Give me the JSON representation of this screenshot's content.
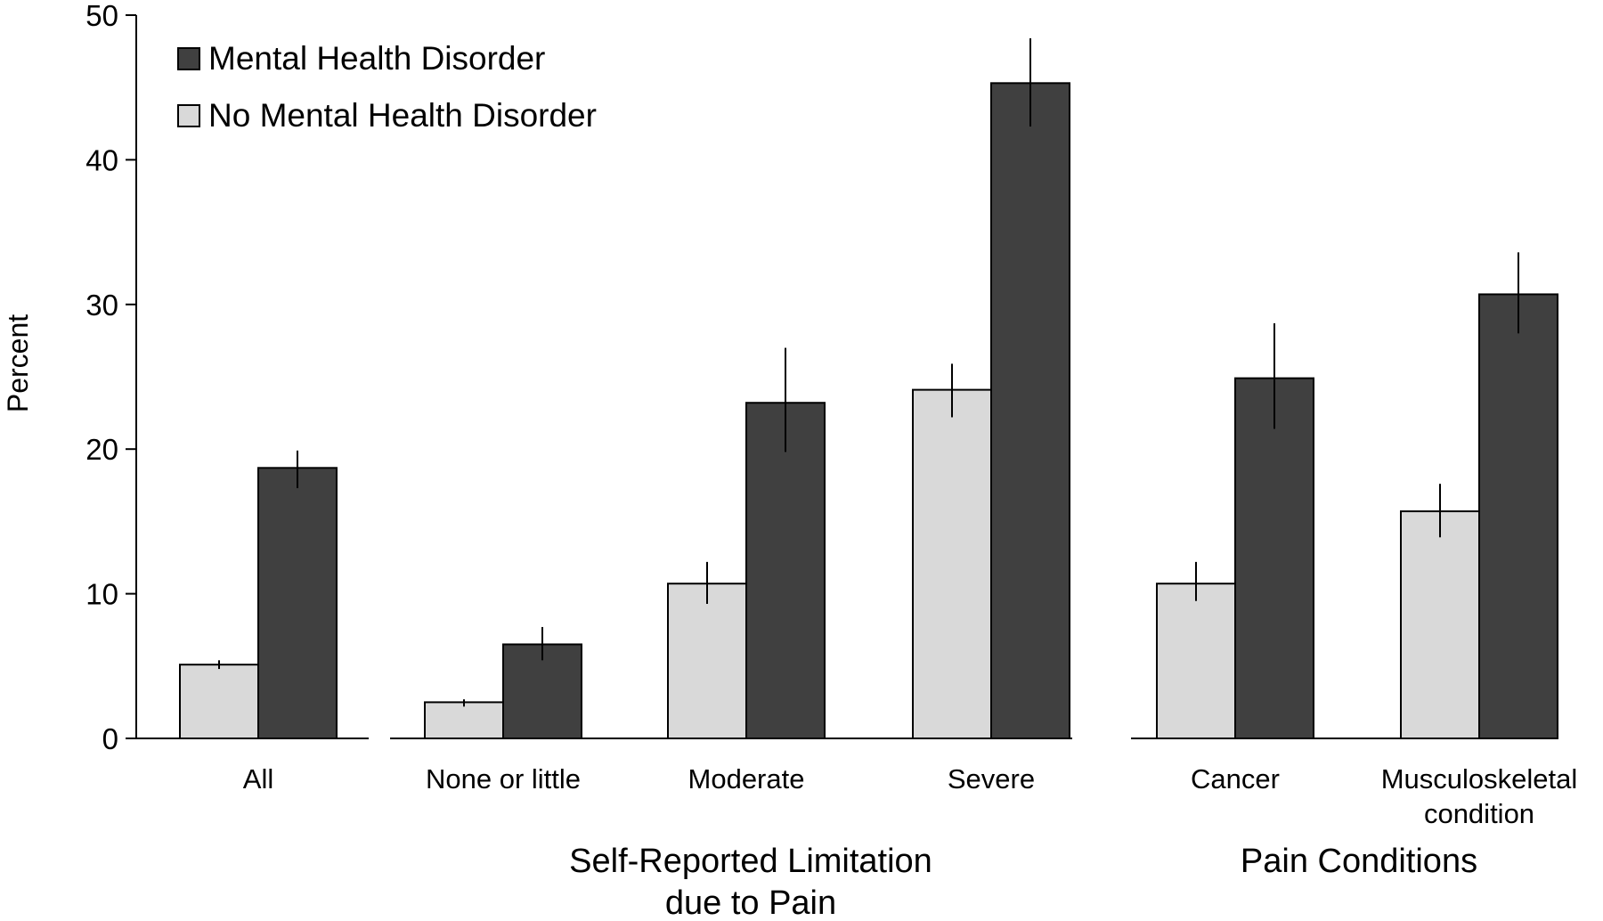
{
  "chart_data": {
    "type": "bar",
    "ylabel": "Percent",
    "ylim": [
      0,
      50
    ],
    "yticks": [
      0,
      10,
      20,
      30,
      40,
      50
    ],
    "grid": false,
    "legend_position": "top-left",
    "groups": [
      {
        "label": [
          "All"
        ],
        "category_indices": [
          0
        ]
      },
      {
        "label": [
          "Self-Reported Limitation",
          "due to Pain"
        ],
        "category_indices": [
          1,
          2,
          3
        ]
      },
      {
        "label": [
          "Pain Conditions"
        ],
        "category_indices": [
          4,
          5
        ]
      }
    ],
    "categories": [
      [
        "All"
      ],
      [
        "None or little"
      ],
      [
        "Moderate"
      ],
      [
        "Severe"
      ],
      [
        "Cancer"
      ],
      [
        "Musculoskeletal",
        "condition"
      ]
    ],
    "series": [
      {
        "name": "No Mental Health Disorder",
        "color": "#d9d9d9",
        "values": [
          5.1,
          2.5,
          10.7,
          24.1,
          10.7,
          15.7
        ],
        "error_low": [
          4.8,
          2.2,
          9.3,
          22.2,
          9.5,
          13.9
        ],
        "error_high": [
          5.4,
          2.7,
          12.2,
          25.9,
          12.2,
          17.6
        ]
      },
      {
        "name": "Mental Health Disorder",
        "color": "#404040",
        "values": [
          18.7,
          6.5,
          23.2,
          45.3,
          24.9,
          30.7
        ],
        "error_low": [
          17.3,
          5.4,
          19.8,
          42.3,
          21.4,
          28.0
        ],
        "error_high": [
          19.9,
          7.7,
          27.0,
          48.4,
          28.7,
          33.6
        ]
      }
    ],
    "legend": [
      {
        "name": "Mental Health Disorder",
        "color": "#404040"
      },
      {
        "name": "No Mental Health Disorder",
        "color": "#d9d9d9"
      }
    ]
  }
}
